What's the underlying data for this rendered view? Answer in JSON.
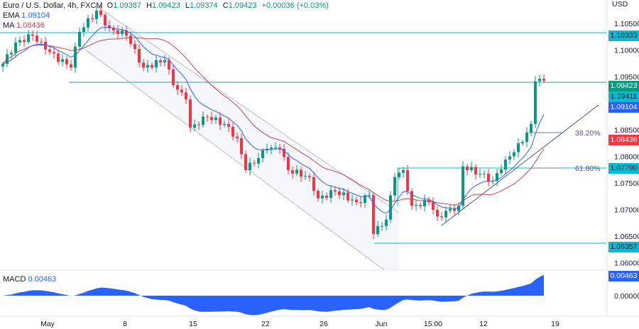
{
  "header": {
    "symbol": "Euro / U.S. Dollar, 4h, FXCM",
    "o_label": "O",
    "o": "1.09387",
    "h_label": "H",
    "h": "1.09423",
    "l_label": "L",
    "l": "1.09374",
    "c_label": "C",
    "c": "1.09423",
    "change": "+0.00036 (+0.03%)"
  },
  "indicators": {
    "ema_label": "EMA",
    "ema": "1.09104",
    "ma_label": "MA",
    "ma": "1.08436",
    "macd_label": "MACD",
    "macd": "0.00463"
  },
  "colors": {
    "up": "#089981",
    "down": "#f23645",
    "ema": "#2962ff",
    "ma": "#c2474f",
    "level": "#00bcd4",
    "macd": "#2962ff",
    "fib": "#5b4e9e"
  },
  "chart_data": {
    "type": "candlestick",
    "currency": "USD",
    "ylim": [
      1.0575,
      1.109
    ],
    "y_ticks": [
      "1.10500",
      "1.10000",
      "1.09500",
      "1.08500",
      "1.08000",
      "1.07500",
      "1.07000",
      "1.06500",
      "1.06000"
    ],
    "x_ticks": [
      "May",
      "8",
      "15",
      "22",
      "26",
      "Jun",
      "15:00",
      "12",
      "19"
    ],
    "close_path": [
      {
        "t": 0,
        "close": 1.0974
      },
      {
        "t": 3,
        "close": 1.1014
      },
      {
        "t": 7,
        "close": 1.1027
      },
      {
        "t": 10,
        "close": 1.1001
      },
      {
        "t": 16,
        "close": 1.0967
      },
      {
        "t": 18,
        "close": 1.1034
      },
      {
        "t": 22,
        "close": 1.1074
      },
      {
        "t": 25,
        "close": 1.1041
      },
      {
        "t": 29,
        "close": 1.1027
      },
      {
        "t": 33,
        "close": 1.0967
      },
      {
        "t": 38,
        "close": 1.0981
      },
      {
        "t": 40,
        "close": 1.0934
      },
      {
        "t": 43,
        "close": 1.0907
      },
      {
        "t": 44,
        "close": 1.0854
      },
      {
        "t": 48,
        "close": 1.0874
      },
      {
        "t": 52,
        "close": 1.0861
      },
      {
        "t": 55,
        "close": 1.0834
      },
      {
        "t": 57,
        "close": 1.0774
      },
      {
        "t": 62,
        "close": 1.0814
      },
      {
        "t": 65,
        "close": 1.0814
      },
      {
        "t": 67,
        "close": 1.0774
      },
      {
        "t": 72,
        "close": 1.0761
      },
      {
        "t": 74,
        "close": 1.0721
      },
      {
        "t": 78,
        "close": 1.0734
      },
      {
        "t": 83,
        "close": 1.0714
      },
      {
        "t": 86,
        "close": 1.0727
      },
      {
        "t": 87,
        "close": 1.0654
      },
      {
        "t": 90,
        "close": 1.0681
      },
      {
        "t": 92,
        "close": 1.0761
      },
      {
        "t": 94,
        "close": 1.0774
      },
      {
        "t": 96,
        "close": 1.0707
      },
      {
        "t": 100,
        "close": 1.0714
      },
      {
        "t": 102,
        "close": 1.0687
      },
      {
        "t": 107,
        "close": 1.0707
      },
      {
        "t": 108,
        "close": 1.0781
      },
      {
        "t": 112,
        "close": 1.0767
      },
      {
        "t": 115,
        "close": 1.0754
      },
      {
        "t": 118,
        "close": 1.0794
      },
      {
        "t": 122,
        "close": 1.0827
      },
      {
        "t": 124,
        "close": 1.0861
      },
      {
        "t": 125,
        "close": 1.0941
      },
      {
        "t": 127,
        "close": 1.09423
      }
    ],
    "macd_ticks": [
      "0.00463",
      "0.00000"
    ],
    "price_tags": [
      {
        "value": "1.10333",
        "color": "#00bcd4"
      },
      {
        "value": "1.09423",
        "color": "#089981"
      },
      {
        "value": "1.09411",
        "color": "#00bcd4"
      },
      {
        "value": "1.09104",
        "color": "#2962ff"
      },
      {
        "value": "1.08436",
        "color": "#f23645"
      },
      {
        "value": "1.07790",
        "color": "#00bcd4"
      },
      {
        "value": "1.06357",
        "color": "#00bcd4"
      }
    ],
    "fib_levels": [
      "38.20%",
      "61.80%"
    ]
  }
}
